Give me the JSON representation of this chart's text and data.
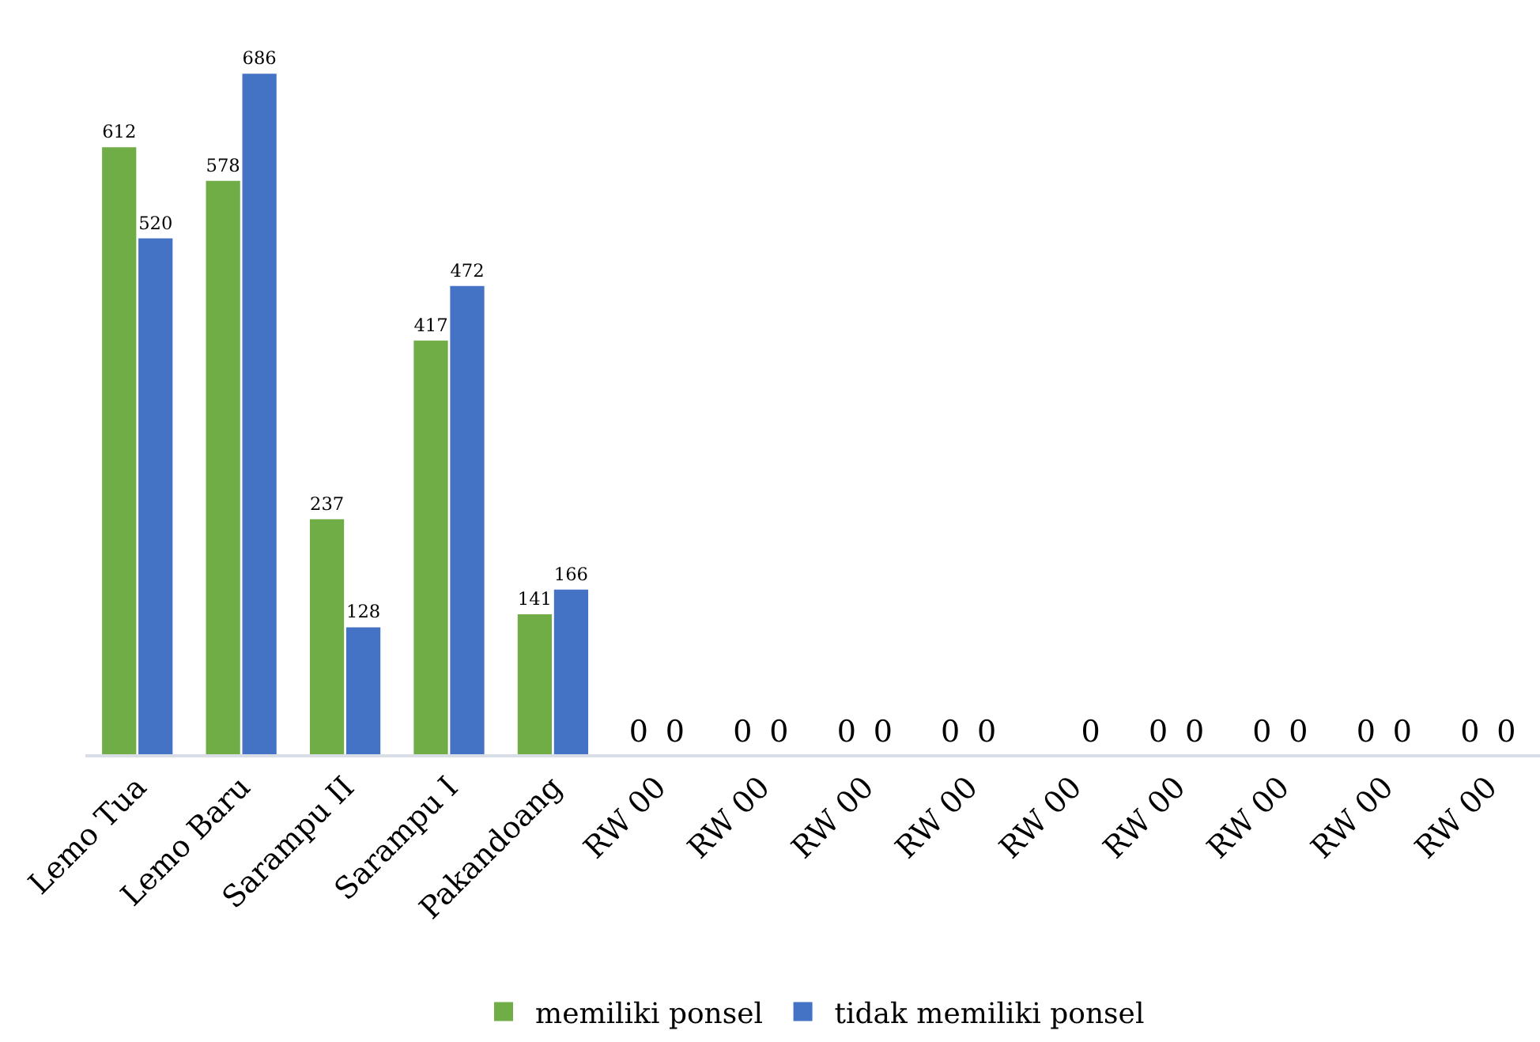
{
  "chart_data": {
    "type": "bar",
    "categories": [
      "Lemo Tua",
      "Lemo Baru",
      "Sarampu II",
      "Sarampu I",
      "Pakandoang",
      "RW 00",
      "RW 00",
      "RW 00",
      "RW 00",
      "RW 00",
      "RW 00",
      "RW 00",
      "RW 00",
      "RW 00"
    ],
    "series": [
      {
        "name": "memiliki ponsel",
        "color": "#70ad47",
        "values": [
          612,
          578,
          237,
          417,
          141,
          0,
          0,
          0,
          0,
          null,
          0,
          0,
          0,
          0
        ]
      },
      {
        "name": "tidak memiliki ponsel",
        "color": "#4472c4",
        "values": [
          520,
          686,
          128,
          472,
          166,
          0,
          0,
          0,
          0,
          0,
          0,
          0,
          0,
          0
        ]
      }
    ],
    "data_labels": true,
    "legend": "bottom",
    "tick_labels": "x"
  }
}
